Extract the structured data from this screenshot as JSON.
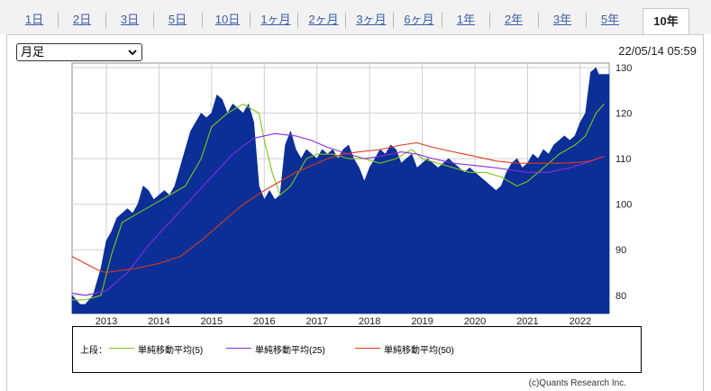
{
  "tabs": [
    "1日",
    "2日",
    "3日",
    "5日",
    "10日",
    "1ヶ月",
    "2ヶ月",
    "3ヶ月",
    "6ヶ月",
    "1年",
    "2年",
    "3年",
    "5年",
    "10年"
  ],
  "active_tab": "10年",
  "period_select": {
    "value": "月足"
  },
  "timestamp": "22/05/14 05:59",
  "credit": "(c)Quants Research Inc.",
  "colors": {
    "area": "#0b2f96",
    "ma5": "#7fc51a",
    "ma25": "#8a2be2",
    "ma50": "#e03a1c",
    "link": "#3a5ea8"
  },
  "legend": {
    "prefix": "上段：",
    "items": [
      "単純移動平均(5)",
      "単純移動平均(25)",
      "単純移動平均(50)"
    ]
  },
  "chart_data": {
    "type": "area",
    "xlim": [
      2012.35,
      2022.55
    ],
    "ylim": [
      76,
      131
    ],
    "x_ticks": [
      2013,
      2014,
      2015,
      2016,
      2017,
      2018,
      2019,
      2020,
      2021,
      2022
    ],
    "x_tick_labels": [
      "2013",
      "2014",
      "2015",
      "2016",
      "2017",
      "2018",
      "2019",
      "2020",
      "2021",
      "2022"
    ],
    "y_ticks": [
      80,
      90,
      100,
      110,
      120,
      130
    ],
    "y_tick_labels": [
      "80",
      "90",
      "100",
      "110",
      "120",
      "130"
    ],
    "grid": true,
    "price": {
      "x": [
        2012.35,
        2012.5,
        2012.6,
        2012.75,
        2012.9,
        2013.0,
        2013.1,
        2013.2,
        2013.3,
        2013.4,
        2013.5,
        2013.6,
        2013.7,
        2013.8,
        2013.9,
        2014.0,
        2014.1,
        2014.2,
        2014.3,
        2014.4,
        2014.5,
        2014.6,
        2014.7,
        2014.8,
        2014.9,
        2015.0,
        2015.1,
        2015.2,
        2015.3,
        2015.4,
        2015.5,
        2015.6,
        2015.7,
        2015.8,
        2015.9,
        2016.0,
        2016.1,
        2016.2,
        2016.3,
        2016.4,
        2016.5,
        2016.6,
        2016.7,
        2016.8,
        2016.9,
        2017.0,
        2017.1,
        2017.2,
        2017.3,
        2017.4,
        2017.5,
        2017.6,
        2017.7,
        2017.8,
        2017.9,
        2018.0,
        2018.1,
        2018.2,
        2018.3,
        2018.4,
        2018.5,
        2018.6,
        2018.7,
        2018.8,
        2018.9,
        2019.0,
        2019.1,
        2019.2,
        2019.3,
        2019.4,
        2019.5,
        2019.6,
        2019.7,
        2019.8,
        2019.9,
        2020.0,
        2020.1,
        2020.2,
        2020.3,
        2020.4,
        2020.5,
        2020.6,
        2020.7,
        2020.8,
        2020.9,
        2021.0,
        2021.1,
        2021.2,
        2021.3,
        2021.4,
        2021.5,
        2021.6,
        2021.7,
        2021.8,
        2021.9,
        2022.0,
        2022.1,
        2022.2,
        2022.3,
        2022.35,
        2022.4,
        2022.45,
        2022.55
      ],
      "y": [
        80,
        78,
        78,
        80,
        86,
        92,
        94,
        97,
        98,
        99,
        98,
        100,
        104,
        103,
        101,
        102,
        103,
        102,
        104,
        108,
        112,
        116,
        118,
        120,
        119,
        120,
        124,
        123,
        120,
        122,
        121,
        120,
        122,
        118,
        104,
        101,
        103,
        101,
        102,
        113,
        116,
        112,
        110,
        112,
        111,
        110,
        112,
        111,
        112,
        110,
        112,
        113,
        110,
        108,
        105,
        108,
        110,
        112,
        111,
        113,
        112,
        109,
        110,
        111,
        108,
        109,
        110,
        109,
        108,
        109,
        110,
        109,
        108,
        107,
        108,
        107,
        106,
        105,
        104,
        103,
        104,
        107,
        109,
        110,
        108,
        109,
        111,
        110,
        112,
        111,
        113,
        114,
        115,
        114,
        115,
        118,
        120,
        129,
        130,
        128.5,
        128.5,
        128.5,
        128.5
      ]
    },
    "series": [
      {
        "name": "単純移動平均(5)",
        "x": [
          2012.35,
          2012.6,
          2012.9,
          2013.1,
          2013.3,
          2013.6,
          2013.9,
          2014.2,
          2014.5,
          2014.8,
          2015.0,
          2015.3,
          2015.6,
          2015.9,
          2016.0,
          2016.15,
          2016.3,
          2016.5,
          2016.8,
          2017.0,
          2017.3,
          2017.6,
          2017.9,
          2018.2,
          2018.5,
          2018.8,
          2019.0,
          2019.3,
          2019.6,
          2019.9,
          2020.2,
          2020.5,
          2020.8,
          2021.0,
          2021.3,
          2021.6,
          2021.9,
          2022.1,
          2022.3,
          2022.45
        ],
        "y": [
          79,
          79,
          80,
          89,
          96,
          98,
          100,
          102,
          104,
          110,
          117,
          120,
          122,
          120,
          114,
          107,
          102,
          104,
          110,
          111,
          111,
          110,
          110,
          109,
          110,
          112,
          110,
          109,
          108,
          107,
          107,
          106,
          104,
          105,
          108,
          111,
          113,
          115,
          120,
          122
        ]
      },
      {
        "name": "単純移動平均(25)",
        "x": [
          2012.35,
          2012.6,
          2013.0,
          2013.4,
          2013.8,
          2014.2,
          2014.6,
          2015.0,
          2015.4,
          2015.8,
          2016.2,
          2016.6,
          2016.9,
          2017.2,
          2017.6,
          2017.9,
          2018.2,
          2018.6,
          2018.9,
          2019.2,
          2019.6,
          2020.0,
          2020.4,
          2020.7,
          2021.0,
          2021.4,
          2021.8,
          2022.1,
          2022.45
        ],
        "y": [
          80.5,
          80,
          81,
          85,
          91,
          96,
          101,
          106,
          111,
          114.5,
          115.5,
          115,
          114,
          112.5,
          111,
          110,
          110.5,
          111.5,
          111,
          110,
          109,
          108.5,
          108,
          107.5,
          107,
          107,
          108,
          109,
          110.5
        ]
      },
      {
        "name": "単純移動平均(50)",
        "x": [
          2012.35,
          2012.6,
          2012.85,
          2013.0,
          2013.3,
          2013.6,
          2014.0,
          2014.4,
          2014.8,
          2015.2,
          2015.6,
          2016.0,
          2016.3,
          2016.6,
          2016.9,
          2017.2,
          2017.5,
          2017.8,
          2018.2,
          2018.6,
          2018.9,
          2019.2,
          2019.6,
          2020.0,
          2020.4,
          2020.8,
          2021.2,
          2021.6,
          2022.0,
          2022.2,
          2022.45
        ],
        "y": [
          88.5,
          87,
          85.5,
          85,
          85.5,
          86,
          87,
          88.5,
          92,
          96,
          100,
          103,
          105,
          107,
          108.5,
          110,
          111,
          111.5,
          112,
          113,
          113.5,
          112.5,
          111.5,
          110.5,
          109.5,
          109,
          109,
          109,
          109.2,
          109.5,
          110.5
        ]
      }
    ]
  }
}
